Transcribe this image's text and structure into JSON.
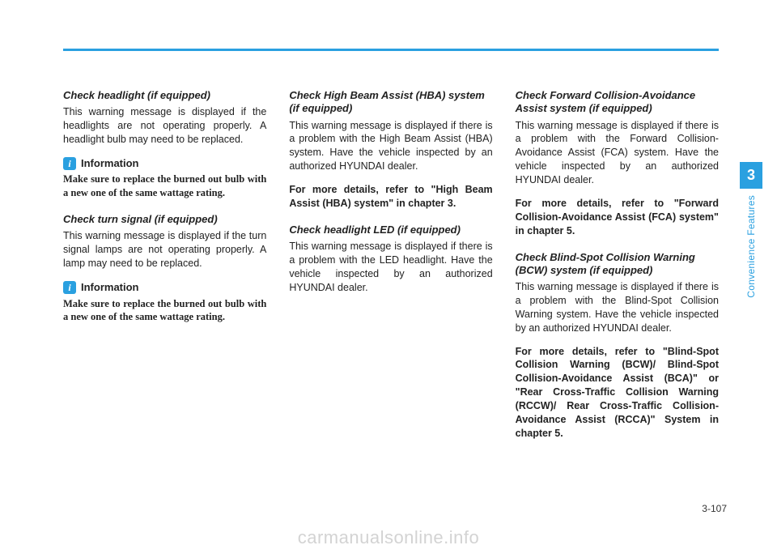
{
  "accent_color": "#2aa0e0",
  "background_color": "#ffffff",
  "text_color": "#222222",
  "watermark_color": "#d3d3d3",
  "page_number": "3-107",
  "side_tab": {
    "number": "3",
    "label": "Convenience Features"
  },
  "watermark": "carmanualsonline.info",
  "info_label": "Information",
  "col1": {
    "s1": {
      "heading": "Check headlight (if equipped)",
      "body": "This warning message is displayed if the headlights are not operating properly. A headlight bulb may need to be replaced.",
      "info": "Make sure to replace the burned out bulb with a new one of the same wattage rating."
    },
    "s2": {
      "heading": "Check turn signal (if equipped)",
      "body": "This warning message is displayed if the turn signal lamps are not operating properly. A lamp may need to be replaced.",
      "info": "Make sure to replace the burned out bulb with a new one of the same wattage rating."
    }
  },
  "col2": {
    "s1": {
      "heading": "Check High Beam Assist (HBA) system (if equipped)",
      "body": "This warning message is displayed if there is a problem with the High Beam Assist (HBA) system. Have the vehicle inspected by an authorized HYUNDAI dealer.",
      "ref": "For more details, refer to \"High Beam Assist (HBA) system\" in chapter 3."
    },
    "s2": {
      "heading": "Check headlight LED (if equipped)",
      "body": "This warning message is displayed if there is a problem with the LED headlight. Have the vehicle inspected by an authorized HYUNDAI dealer."
    }
  },
  "col3": {
    "s1": {
      "heading": "Check Forward Collision-Avoidance Assist system (if equipped)",
      "body": "This warning message is displayed if there is a problem with the Forward Collision-Avoidance Assist (FCA) system. Have the vehicle inspected by an authorized HYUNDAI dealer.",
      "ref": "For more details, refer to \"Forward Collision-Avoidance Assist (FCA) system\" in chapter 5."
    },
    "s2": {
      "heading": "Check Blind-Spot Collision Warning (BCW) system (if equipped)",
      "body": "This warning message is displayed if there is a problem with the Blind-Spot Collision Warning system. Have the vehicle inspected by an authorized HYUNDAI dealer.",
      "ref": "For more details, refer to \"Blind-Spot Collision Warning (BCW)/ Blind-Spot Collision-Avoidance Assist (BCA)\" or \"Rear Cross-Traffic Collision Warning (RCCW)/ Rear Cross-Traffic Collision-Avoidance Assist (RCCA)\" System in chapter 5."
    }
  }
}
